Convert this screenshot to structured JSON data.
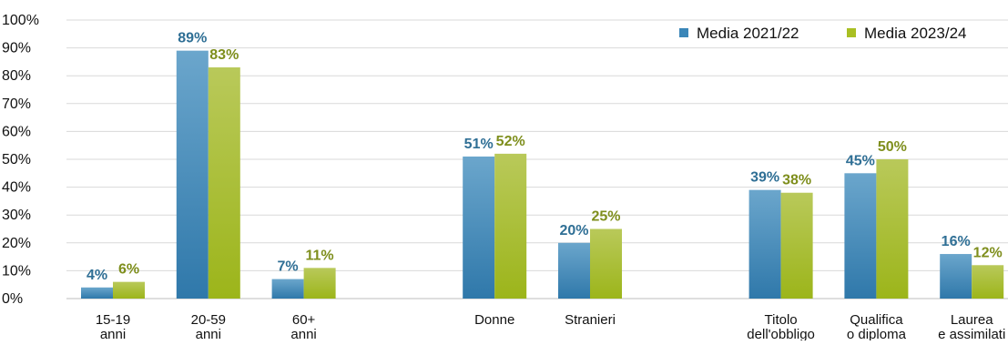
{
  "chart_data": {
    "type": "bar",
    "title": "",
    "xlabel": "",
    "ylabel": "",
    "ylim": [
      0,
      100
    ],
    "yticks": [
      "0%",
      "10%",
      "20%",
      "30%",
      "40%",
      "50%",
      "60%",
      "70%",
      "80%",
      "90%",
      "100%"
    ],
    "grid": true,
    "legend_position": "top-right",
    "categories": [
      [
        "15-19",
        "anni"
      ],
      [
        "20-59",
        "anni"
      ],
      [
        "60+",
        "anni"
      ],
      [
        ""
      ],
      [
        "Donne"
      ],
      [
        "Stranieri"
      ],
      [
        ""
      ],
      [
        "Titolo",
        "dell'obbligo"
      ],
      [
        "Qualifica",
        "o diploma"
      ],
      [
        "Laurea",
        "e assimilati"
      ]
    ],
    "series": [
      {
        "name": "Media 2021/22",
        "color": "#3a86b8",
        "label_color": "#2f6f95",
        "values": [
          4,
          89,
          7,
          null,
          51,
          20,
          null,
          39,
          45,
          16
        ],
        "labels": [
          "4%",
          "89%",
          "7%",
          "",
          "51%",
          "20%",
          "",
          "39%",
          "45%",
          "16%"
        ]
      },
      {
        "name": "Media 2023/24",
        "color": "#a9bf23",
        "label_color": "#7e8e1c",
        "values": [
          6,
          83,
          11,
          null,
          52,
          25,
          null,
          38,
          50,
          12
        ],
        "labels": [
          "6%",
          "83%",
          "11%",
          "",
          "52%",
          "25%",
          "",
          "38%",
          "50%",
          "12%"
        ]
      }
    ]
  }
}
